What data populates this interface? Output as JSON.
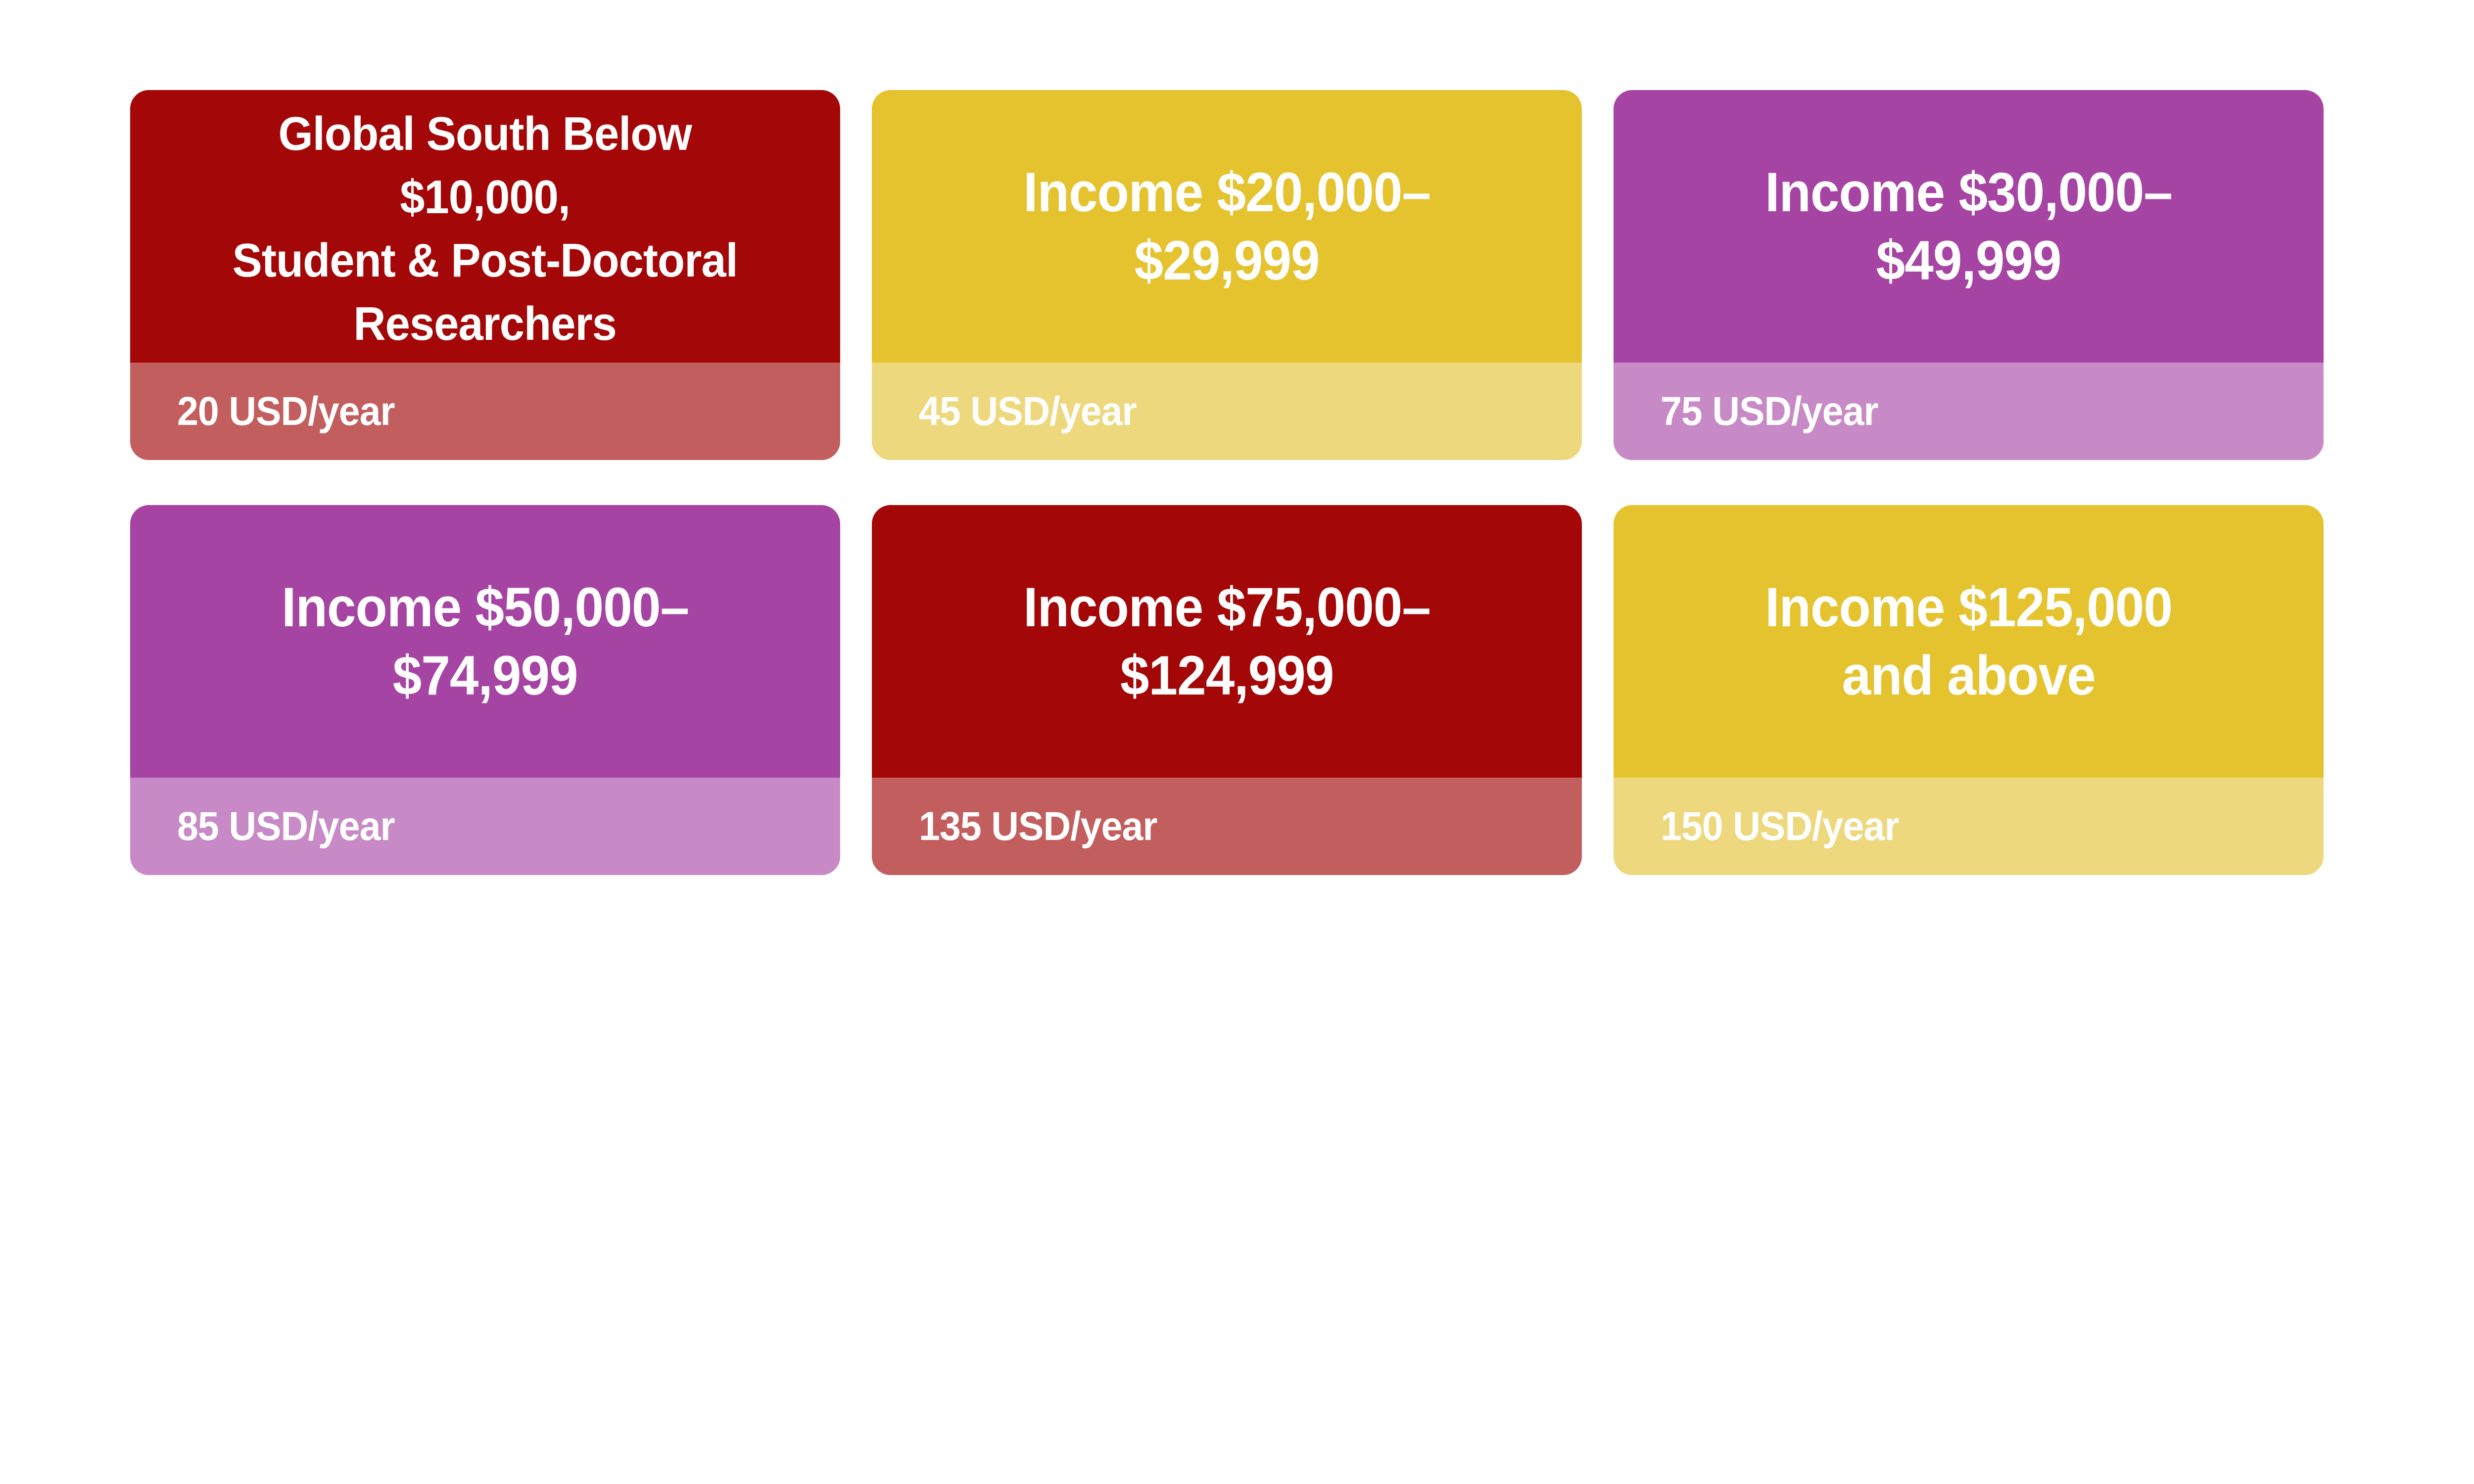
{
  "page": {
    "background": "#FFFFFF",
    "text_color": "#FFFFFF"
  },
  "colors": {
    "red": {
      "body": "#A40707",
      "footer": "#C25E5E"
    },
    "yellow": {
      "body": "#E5C32F",
      "footer": "#EDD87E"
    },
    "purple": {
      "body": "#A644A4",
      "footer": "#C78AC6"
    }
  },
  "cards": [
    {
      "theme": "red",
      "title_lines": [
        "Global South Below",
        "$10,000,",
        "Student & Post-Doctoral",
        "Researchers"
      ],
      "price": "20 USD/year"
    },
    {
      "theme": "yellow",
      "title_lines": [
        "Income $20,000–",
        "$29,999"
      ],
      "price": "45 USD/year"
    },
    {
      "theme": "purple",
      "title_lines": [
        "Income $30,000–",
        "$49,999"
      ],
      "price": "75 USD/year"
    },
    {
      "theme": "purple",
      "title_lines": [
        "Income $50,000–",
        "$74,999"
      ],
      "price": "85 USD/year"
    },
    {
      "theme": "red",
      "title_lines": [
        "Income $75,000–",
        "$124,999"
      ],
      "price": "135 USD/year"
    },
    {
      "theme": "yellow",
      "title_lines": [
        "Income $125,000",
        "and above"
      ],
      "price": "150 USD/year"
    }
  ]
}
